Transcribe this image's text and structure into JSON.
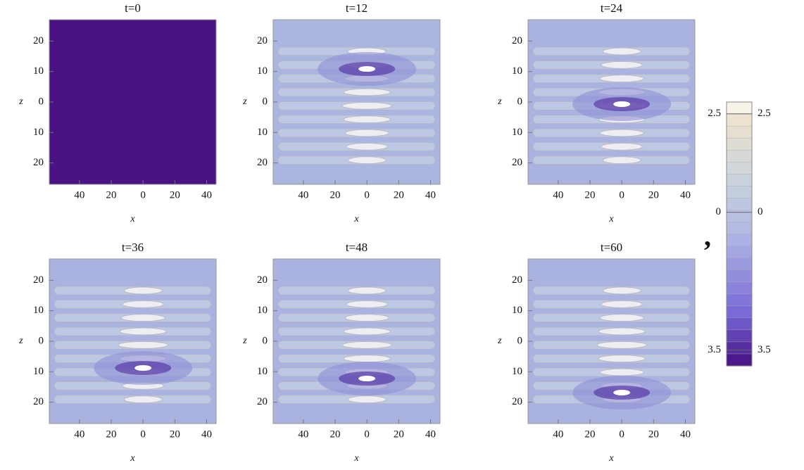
{
  "chart_data": [
    {
      "type": "contour",
      "title": "t=0",
      "x_label": "x",
      "y_label": "z",
      "fill": "#4b1283",
      "xlim": [
        -59,
        46
      ],
      "ylim": [
        -27,
        27
      ],
      "xticks": [
        {
          "value": -40,
          "label": "40"
        },
        {
          "value": -20,
          "label": "20"
        },
        0,
        20,
        40
      ],
      "yticks": [
        20,
        10,
        0,
        {
          "value": -10,
          "label": "10"
        },
        {
          "value": -20,
          "label": "20"
        }
      ]
    },
    {
      "type": "contour",
      "title": "t=12",
      "x_label": "x",
      "y_label": "z",
      "fill": "#aab6df",
      "xlim": [
        -59,
        46
      ],
      "ylim": [
        -27,
        27
      ],
      "xticks": [
        {
          "value": -40,
          "label": "40"
        },
        {
          "value": -20,
          "label": "20"
        },
        0,
        20,
        40
      ],
      "yticks": [
        20,
        10,
        0,
        {
          "value": -10,
          "label": "10"
        },
        {
          "value": -20,
          "label": "20"
        }
      ]
    },
    {
      "type": "contour",
      "title": "t=24",
      "x_label": "x",
      "y_label": "z",
      "fill": "#aab3e0",
      "xlim": [
        -59,
        46
      ],
      "ylim": [
        -27,
        27
      ],
      "xticks": [
        {
          "value": -40,
          "label": "40"
        },
        {
          "value": -20,
          "label": "20"
        },
        0,
        20,
        40
      ],
      "yticks": [
        20,
        10,
        0,
        {
          "value": -10,
          "label": "10"
        },
        {
          "value": -20,
          "label": "20"
        }
      ]
    },
    {
      "type": "contour",
      "title": "t=36",
      "x_label": "x",
      "y_label": "z",
      "fill": "#aab3e0",
      "xlim": [
        -59,
        46
      ],
      "ylim": [
        -27,
        27
      ],
      "xticks": [
        {
          "value": -40,
          "label": "40"
        },
        {
          "value": -20,
          "label": "20"
        },
        0,
        20,
        40
      ],
      "yticks": [
        20,
        10,
        0,
        {
          "value": -10,
          "label": "10"
        },
        {
          "value": -20,
          "label": "20"
        }
      ]
    },
    {
      "type": "contour",
      "title": "t=48",
      "x_label": "x",
      "y_label": "z",
      "fill": "#aab3e0",
      "xlim": [
        -59,
        46
      ],
      "ylim": [
        -27,
        27
      ],
      "xticks": [
        {
          "value": -40,
          "label": "40"
        },
        {
          "value": -20,
          "label": "20"
        },
        0,
        20,
        40
      ],
      "yticks": [
        20,
        10,
        0,
        {
          "value": -10,
          "label": "10"
        },
        {
          "value": -20,
          "label": "20"
        }
      ]
    },
    {
      "type": "contour",
      "title": "t=60",
      "x_label": "x",
      "y_label": "z",
      "fill": "#aab3e0",
      "xlim": [
        -59,
        46
      ],
      "ylim": [
        -27,
        27
      ],
      "xticks": [
        {
          "value": -40,
          "label": "40"
        },
        {
          "value": -20,
          "label": "20"
        },
        0,
        20,
        40
      ],
      "yticks": [
        20,
        10,
        0,
        {
          "value": -10,
          "label": "10"
        },
        {
          "value": -20,
          "label": "20"
        }
      ]
    }
  ],
  "separator": ",",
  "colorbar": {
    "lim": [
      -3.9,
      2.8
    ],
    "ticks": [
      {
        "value": 2.5,
        "label": "2.5"
      },
      0,
      {
        "value": -3.5,
        "label": "3.5"
      }
    ]
  }
}
